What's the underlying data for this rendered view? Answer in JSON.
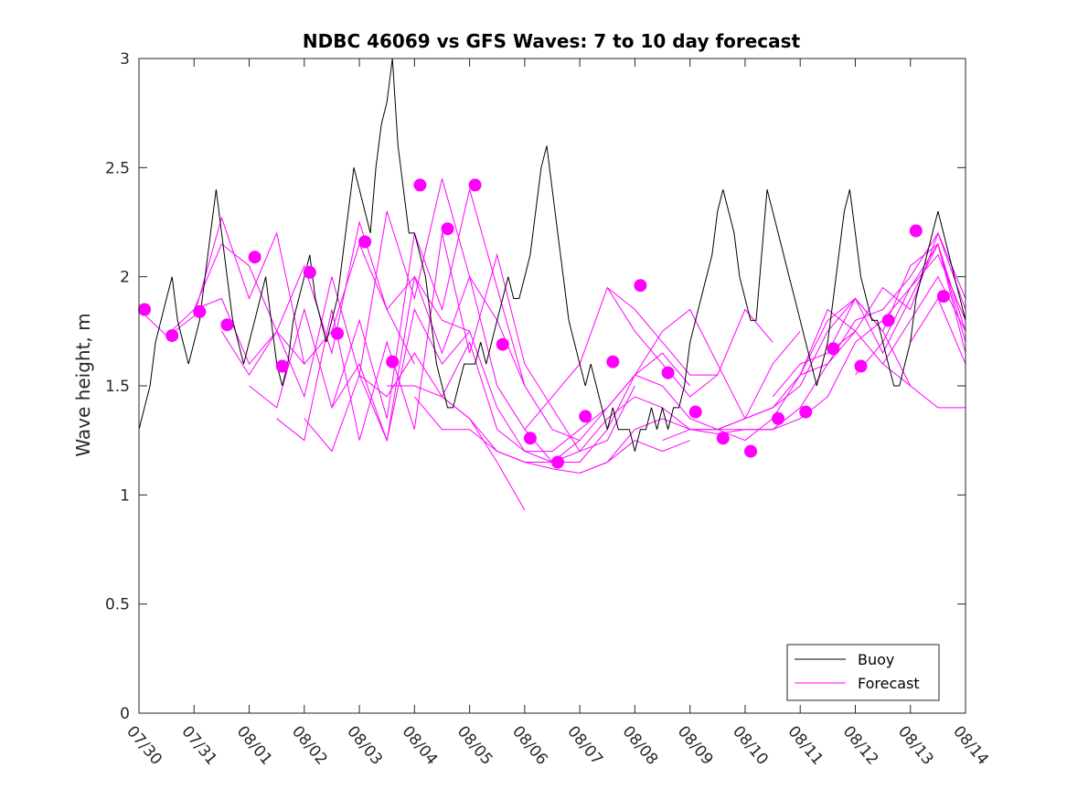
{
  "chart_data": {
    "type": "line",
    "title": "NDBC 46069 vs GFS Waves: 7 to 10 day forecast",
    "xlabel": "",
    "ylabel": "Wave height, m",
    "x_tick_labels": [
      "07/30",
      "07/31",
      "08/01",
      "08/02",
      "08/03",
      "08/04",
      "08/05",
      "08/06",
      "08/07",
      "08/08",
      "08/09",
      "08/10",
      "08/11",
      "08/12",
      "08/13",
      "08/14"
    ],
    "x_tick_days": [
      0,
      1,
      2,
      3,
      4,
      5,
      6,
      7,
      8,
      9,
      10,
      11,
      12,
      13,
      14,
      15
    ],
    "xlim": [
      0,
      15
    ],
    "y_ticks": [
      0,
      0.5,
      1,
      1.5,
      2,
      2.5,
      3
    ],
    "y_tick_labels": [
      "0",
      "0.5",
      "1",
      "1.5",
      "2",
      "2.5",
      "3"
    ],
    "ylim": [
      0,
      3
    ],
    "grid": false,
    "legend_position": "bottom-right",
    "legend": [
      {
        "label": "Buoy",
        "color": "#000000"
      },
      {
        "label": "Forecast",
        "color": "#ff00ff"
      }
    ],
    "colors": {
      "buoy": "#000000",
      "forecast": "#ff00ff"
    },
    "series": [
      {
        "key": "buoy",
        "x": [
          0,
          0.1,
          0.2,
          0.3,
          0.4,
          0.5,
          0.6,
          0.7,
          0.8,
          0.9,
          1.0,
          1.1,
          1.2,
          1.3,
          1.4,
          1.5,
          1.6,
          1.7,
          1.8,
          1.9,
          2.0,
          2.1,
          2.2,
          2.3,
          2.4,
          2.5,
          2.6,
          2.7,
          2.8,
          2.9,
          3.0,
          3.1,
          3.2,
          3.3,
          3.4,
          3.5,
          3.6,
          3.7,
          3.8,
          3.9,
          4.0,
          4.1,
          4.2,
          4.3,
          4.4,
          4.5,
          4.6,
          4.7,
          4.8,
          4.9,
          5.0,
          5.1,
          5.2,
          5.3,
          5.4,
          5.5,
          5.6,
          5.7,
          5.8,
          5.9,
          6.0,
          6.1,
          6.2,
          6.3,
          6.4,
          6.5,
          6.6,
          6.7,
          6.8,
          6.9,
          7.0,
          7.1,
          7.2,
          7.3,
          7.4,
          7.5,
          7.6,
          7.7,
          7.8,
          7.9,
          8.0,
          8.1,
          8.2,
          8.3,
          8.4,
          8.5,
          8.6,
          8.7,
          8.8,
          8.9,
          9.0,
          9.1,
          9.2,
          9.3,
          9.4,
          9.5,
          9.6,
          9.7,
          9.8,
          9.9,
          10.0,
          10.1,
          10.2,
          10.3,
          10.4,
          10.5,
          10.6,
          10.7,
          10.8,
          10.9,
          11.0,
          11.1,
          11.2,
          11.3,
          11.4,
          11.5,
          11.6,
          11.7,
          11.8,
          11.9,
          12.0,
          12.1,
          12.2,
          12.3,
          12.4,
          12.5,
          12.6,
          12.7,
          12.8,
          12.9,
          13.0,
          13.1,
          13.2,
          13.3,
          13.4,
          13.5,
          13.6,
          13.7,
          13.8,
          13.9,
          14.0,
          14.1,
          14.2,
          14.3,
          14.4,
          14.5,
          14.6,
          14.7,
          14.8,
          14.9,
          15.0
        ],
        "values": [
          1.3,
          1.4,
          1.5,
          1.7,
          1.8,
          1.9,
          2.0,
          1.8,
          1.7,
          1.6,
          1.7,
          1.8,
          2.0,
          2.2,
          2.4,
          2.2,
          2.0,
          1.8,
          1.7,
          1.6,
          1.7,
          1.8,
          1.9,
          2.0,
          1.8,
          1.6,
          1.5,
          1.6,
          1.8,
          1.9,
          2.0,
          2.1,
          1.9,
          1.8,
          1.7,
          1.8,
          1.9,
          2.1,
          2.3,
          2.5,
          2.4,
          2.3,
          2.2,
          2.5,
          2.7,
          2.8,
          3.0,
          2.6,
          2.4,
          2.2,
          2.2,
          2.1,
          2.0,
          1.8,
          1.6,
          1.5,
          1.4,
          1.4,
          1.5,
          1.6,
          1.6,
          1.6,
          1.7,
          1.6,
          1.7,
          1.8,
          1.9,
          2.0,
          1.9,
          1.9,
          2.0,
          2.1,
          2.3,
          2.5,
          2.6,
          2.4,
          2.2,
          2.0,
          1.8,
          1.7,
          1.6,
          1.5,
          1.6,
          1.5,
          1.4,
          1.3,
          1.4,
          1.3,
          1.3,
          1.3,
          1.2,
          1.3,
          1.3,
          1.4,
          1.3,
          1.4,
          1.3,
          1.4,
          1.4,
          1.5,
          1.7,
          1.8,
          1.9,
          2.0,
          2.1,
          2.3,
          2.4,
          2.3,
          2.2,
          2.0,
          1.9,
          1.8,
          1.8,
          2.1,
          2.4,
          2.3,
          2.2,
          2.1,
          2.0,
          1.9,
          1.8,
          1.7,
          1.6,
          1.5,
          1.6,
          1.7,
          1.9,
          2.1,
          2.3,
          2.4,
          2.2,
          2.0,
          1.9,
          1.8,
          1.8,
          1.7,
          1.6,
          1.5,
          1.5,
          1.6,
          1.7,
          1.9,
          2.0,
          2.1,
          2.2,
          2.3,
          2.2,
          2.1,
          2.0,
          1.9,
          1.8
        ]
      },
      {
        "key": "forecast",
        "x": [
          0,
          0.5,
          1,
          1.5,
          2,
          2.5,
          3
        ],
        "values": [
          1.85,
          1.73,
          1.85,
          2.15,
          2.05,
          1.75,
          1.6
        ]
      },
      {
        "key": "forecast",
        "x": [
          0.5,
          1,
          1.5,
          2,
          2.5,
          3,
          3.5,
          4,
          4.5,
          5
        ],
        "values": [
          1.72,
          1.82,
          2.27,
          1.9,
          2.2,
          1.6,
          1.75,
          2.15,
          1.85,
          1.6
        ]
      },
      {
        "key": "forecast",
        "x": [
          1,
          1.5,
          2,
          2.5,
          3,
          3.5,
          4,
          4.5,
          5,
          5.5,
          6
        ],
        "values": [
          1.85,
          1.9,
          1.6,
          1.75,
          2.05,
          1.65,
          2.25,
          1.85,
          2.0,
          1.8,
          1.75
        ]
      },
      {
        "key": "forecast",
        "x": [
          1.5,
          2,
          2.5,
          3,
          3.5,
          4,
          4.5,
          5,
          5.5,
          6,
          6.5,
          7
        ],
        "values": [
          1.75,
          1.55,
          1.75,
          1.45,
          2.0,
          1.55,
          2.3,
          1.9,
          2.45,
          2.0,
          1.8,
          1.5
        ]
      },
      {
        "key": "forecast",
        "x": [
          2,
          2.5,
          3,
          3.5,
          4,
          4.5,
          5,
          5.5,
          6,
          6.5,
          7,
          7.5,
          8
        ],
        "values": [
          1.5,
          1.4,
          1.85,
          1.4,
          1.8,
          1.35,
          2.2,
          1.85,
          2.4,
          1.95,
          1.5,
          1.3,
          1.25
        ]
      },
      {
        "key": "forecast",
        "x": [
          2.5,
          3,
          3.5,
          4,
          4.5,
          5,
          5.5,
          6,
          6.5,
          7,
          7.5,
          8,
          8.5,
          9
        ],
        "values": [
          1.35,
          1.25,
          1.85,
          1.25,
          1.7,
          1.3,
          2.2,
          1.65,
          2.1,
          1.6,
          1.4,
          1.2,
          1.25,
          1.5
        ]
      },
      {
        "key": "forecast",
        "x": [
          3,
          3.5,
          4,
          4.5,
          5,
          5.5,
          6,
          6.5,
          7,
          7.5,
          8,
          8.5,
          9,
          9.5,
          10
        ],
        "values": [
          1.35,
          1.2,
          1.55,
          1.25,
          2.0,
          1.65,
          2.0,
          1.5,
          1.3,
          1.15,
          1.15,
          1.3,
          1.55,
          1.65,
          1.5
        ]
      },
      {
        "key": "forecast",
        "x": [
          3.5,
          4,
          4.5,
          5,
          5.5,
          6,
          6.5,
          7,
          7.5,
          8,
          8.5,
          9,
          9.5,
          10,
          10.5,
          11
        ],
        "values": [
          1.4,
          1.6,
          1.25,
          1.85,
          1.6,
          1.75,
          1.4,
          1.2,
          1.2,
          1.3,
          1.4,
          1.55,
          1.75,
          1.85,
          1.6,
          1.35
        ]
      },
      {
        "key": "forecast",
        "x": [
          4,
          4.5,
          5,
          5.5,
          6,
          6.5,
          7,
          7.5,
          8,
          8.5,
          9,
          9.5,
          10,
          10.5,
          11,
          11.5,
          12
        ],
        "values": [
          1.55,
          1.45,
          1.65,
          1.45,
          1.7,
          1.3,
          1.2,
          1.15,
          1.25,
          1.4,
          1.55,
          1.5,
          1.35,
          1.3,
          1.35,
          1.6,
          1.75
        ]
      },
      {
        "key": "forecast",
        "x": [
          4.5,
          5,
          5.5,
          6,
          6.5,
          7,
          7.5,
          8,
          8.5,
          9,
          9.5,
          10,
          10.5,
          11,
          11.5,
          12,
          12.5,
          13
        ],
        "values": [
          1.5,
          1.5,
          1.45,
          1.35,
          1.2,
          1.15,
          1.15,
          1.2,
          1.35,
          1.45,
          1.4,
          1.3,
          1.3,
          1.25,
          1.35,
          1.55,
          1.85,
          1.75
        ]
      },
      {
        "key": "forecast",
        "x": [
          5,
          5.5,
          6,
          6.5,
          7,
          7.5,
          8,
          8.5,
          9,
          9.5,
          10,
          10.5,
          11,
          11.5,
          12,
          12.5,
          13,
          13.5,
          14
        ],
        "values": [
          1.45,
          1.3,
          1.3,
          1.2,
          1.15,
          1.12,
          1.1,
          1.15,
          1.3,
          1.35,
          1.3,
          1.28,
          1.3,
          1.3,
          1.4,
          1.6,
          1.75,
          1.6,
          1.5
        ]
      },
      {
        "key": "forecast",
        "x": [
          5.5,
          6,
          6.5,
          7
        ],
        "values": [
          1.45,
          1.35,
          1.15,
          0.93
        ]
      },
      {
        "key": "forecast",
        "x": [
          8,
          8.5,
          9,
          9.5,
          10
        ],
        "values": [
          1.1,
          1.15,
          1.25,
          1.2,
          1.25
        ]
      },
      {
        "key": "forecast",
        "x": [
          9.5,
          10,
          10.5,
          11,
          11.5,
          12,
          12.5,
          13,
          13.5,
          14,
          14.5,
          15
        ],
        "values": [
          1.25,
          1.3,
          1.3,
          1.35,
          1.4,
          1.5,
          1.75,
          1.9,
          1.75,
          1.5,
          1.4,
          1.4
        ]
      },
      {
        "key": "forecast",
        "x": [
          10.5,
          11,
          11.5,
          12,
          12.5,
          13,
          13.5,
          14,
          14.5,
          15
        ],
        "values": [
          1.3,
          1.3,
          1.3,
          1.35,
          1.45,
          1.7,
          1.8,
          1.95,
          2.15,
          1.75
        ]
      },
      {
        "key": "forecast",
        "x": [
          11,
          11.5,
          12,
          12.5,
          13,
          13.5,
          14,
          14.5,
          15
        ],
        "values": [
          1.35,
          1.4,
          1.55,
          1.6,
          1.8,
          1.85,
          2.0,
          2.2,
          1.85
        ]
      },
      {
        "key": "forecast",
        "x": [
          11.5,
          12,
          12.5,
          13,
          13.5,
          14,
          14.5,
          15
        ],
        "values": [
          1.45,
          1.6,
          1.65,
          1.9,
          1.65,
          1.9,
          2.15,
          1.65
        ]
      },
      {
        "key": "forecast",
        "x": [
          12,
          12.5,
          13,
          13.5,
          14,
          14.5,
          15
        ],
        "values": [
          1.55,
          1.8,
          1.9,
          1.75,
          2.05,
          2.15,
          1.7
        ]
      },
      {
        "key": "forecast",
        "x": [
          12.5,
          13,
          13.5,
          14,
          14.5,
          15
        ],
        "values": [
          1.65,
          1.75,
          1.95,
          1.85,
          2.2,
          1.9
        ]
      },
      {
        "key": "forecast",
        "x": [
          13,
          13.5,
          14,
          14.5,
          15
        ],
        "values": [
          1.55,
          1.7,
          1.95,
          2.1,
          1.8
        ]
      },
      {
        "key": "forecast",
        "x": [
          13.5,
          14,
          14.5,
          15
        ],
        "values": [
          1.6,
          1.8,
          2.0,
          1.75
        ]
      },
      {
        "key": "forecast",
        "x": [
          14,
          14.5,
          15
        ],
        "values": [
          1.7,
          1.9,
          1.6
        ]
      },
      {
        "key": "forecast",
        "x": [
          7,
          7.5,
          8,
          8.5,
          9,
          9.5,
          10,
          10.5
        ],
        "values": [
          1.3,
          1.45,
          1.6,
          1.95,
          1.75,
          1.6,
          1.45,
          1.55
        ]
      },
      {
        "key": "forecast",
        "x": [
          8.5,
          9,
          9.5,
          10,
          10.5,
          11,
          11.5
        ],
        "values": [
          1.95,
          1.85,
          1.7,
          1.55,
          1.55,
          1.85,
          1.7
        ]
      }
    ],
    "forecast_markers": {
      "x": [
        0.1,
        0.6,
        1.1,
        1.6,
        2.1,
        2.6,
        3.1,
        3.6,
        4.1,
        4.6,
        5.1,
        5.6,
        6.1,
        6.6,
        7.1,
        7.6,
        8.1,
        8.6,
        9.1,
        9.6,
        10.1,
        10.6,
        11.1,
        11.6,
        12.1,
        12.6,
        13.1,
        13.6,
        14.1,
        14.6
      ],
      "values": [
        1.85,
        1.73,
        1.84,
        1.78,
        2.09,
        1.59,
        2.02,
        1.74,
        2.16,
        1.61,
        2.42,
        2.22,
        2.42,
        1.69,
        1.26,
        1.15,
        1.36,
        1.61,
        1.96,
        1.56,
        1.38,
        1.26,
        1.2,
        1.35,
        1.38,
        1.67,
        1.59,
        1.8,
        2.21,
        1.91
      ]
    }
  }
}
